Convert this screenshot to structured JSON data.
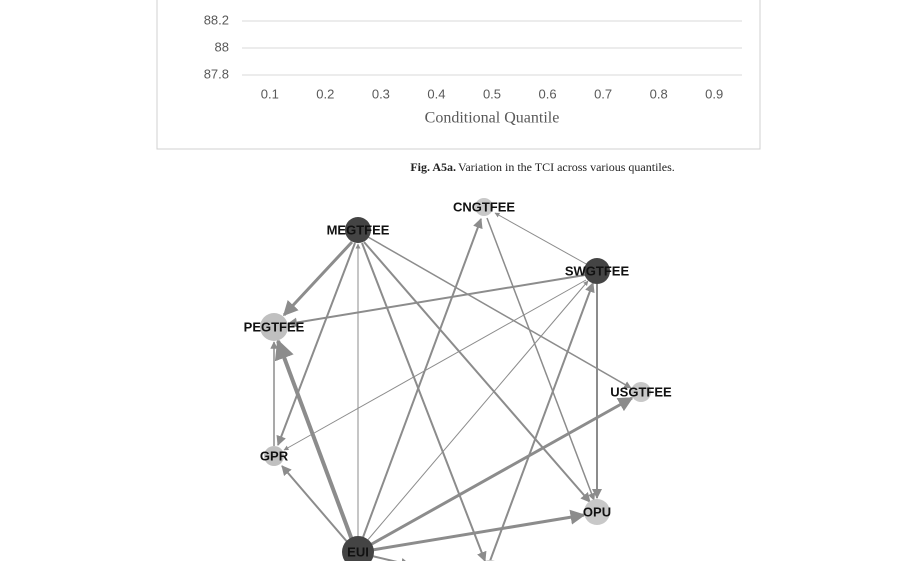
{
  "chart_data": {
    "type": "line",
    "xlabel": "Conditional Quantile",
    "xlim": [
      0.05,
      0.95
    ],
    "xticks": [
      0.1,
      0.2,
      0.3,
      0.4,
      0.5,
      0.6,
      0.7,
      0.8,
      0.9
    ],
    "ylim": [
      87.8,
      88.2
    ],
    "yticks": [
      87.8,
      88,
      88.2
    ],
    "grid": true
  },
  "caption": {
    "label": "Fig. A5a.",
    "text": "Variation in the TCI across various quantiles."
  },
  "network": {
    "nodes": [
      {
        "label": "MEGTFEE"
      },
      {
        "label": "CNGTFEE"
      },
      {
        "label": "SWGTFEE"
      },
      {
        "label": "PEGTFEE"
      },
      {
        "label": "USGTFEE"
      },
      {
        "label": "GPR"
      },
      {
        "label": "OPU"
      },
      {
        "label": "EUI"
      }
    ]
  }
}
